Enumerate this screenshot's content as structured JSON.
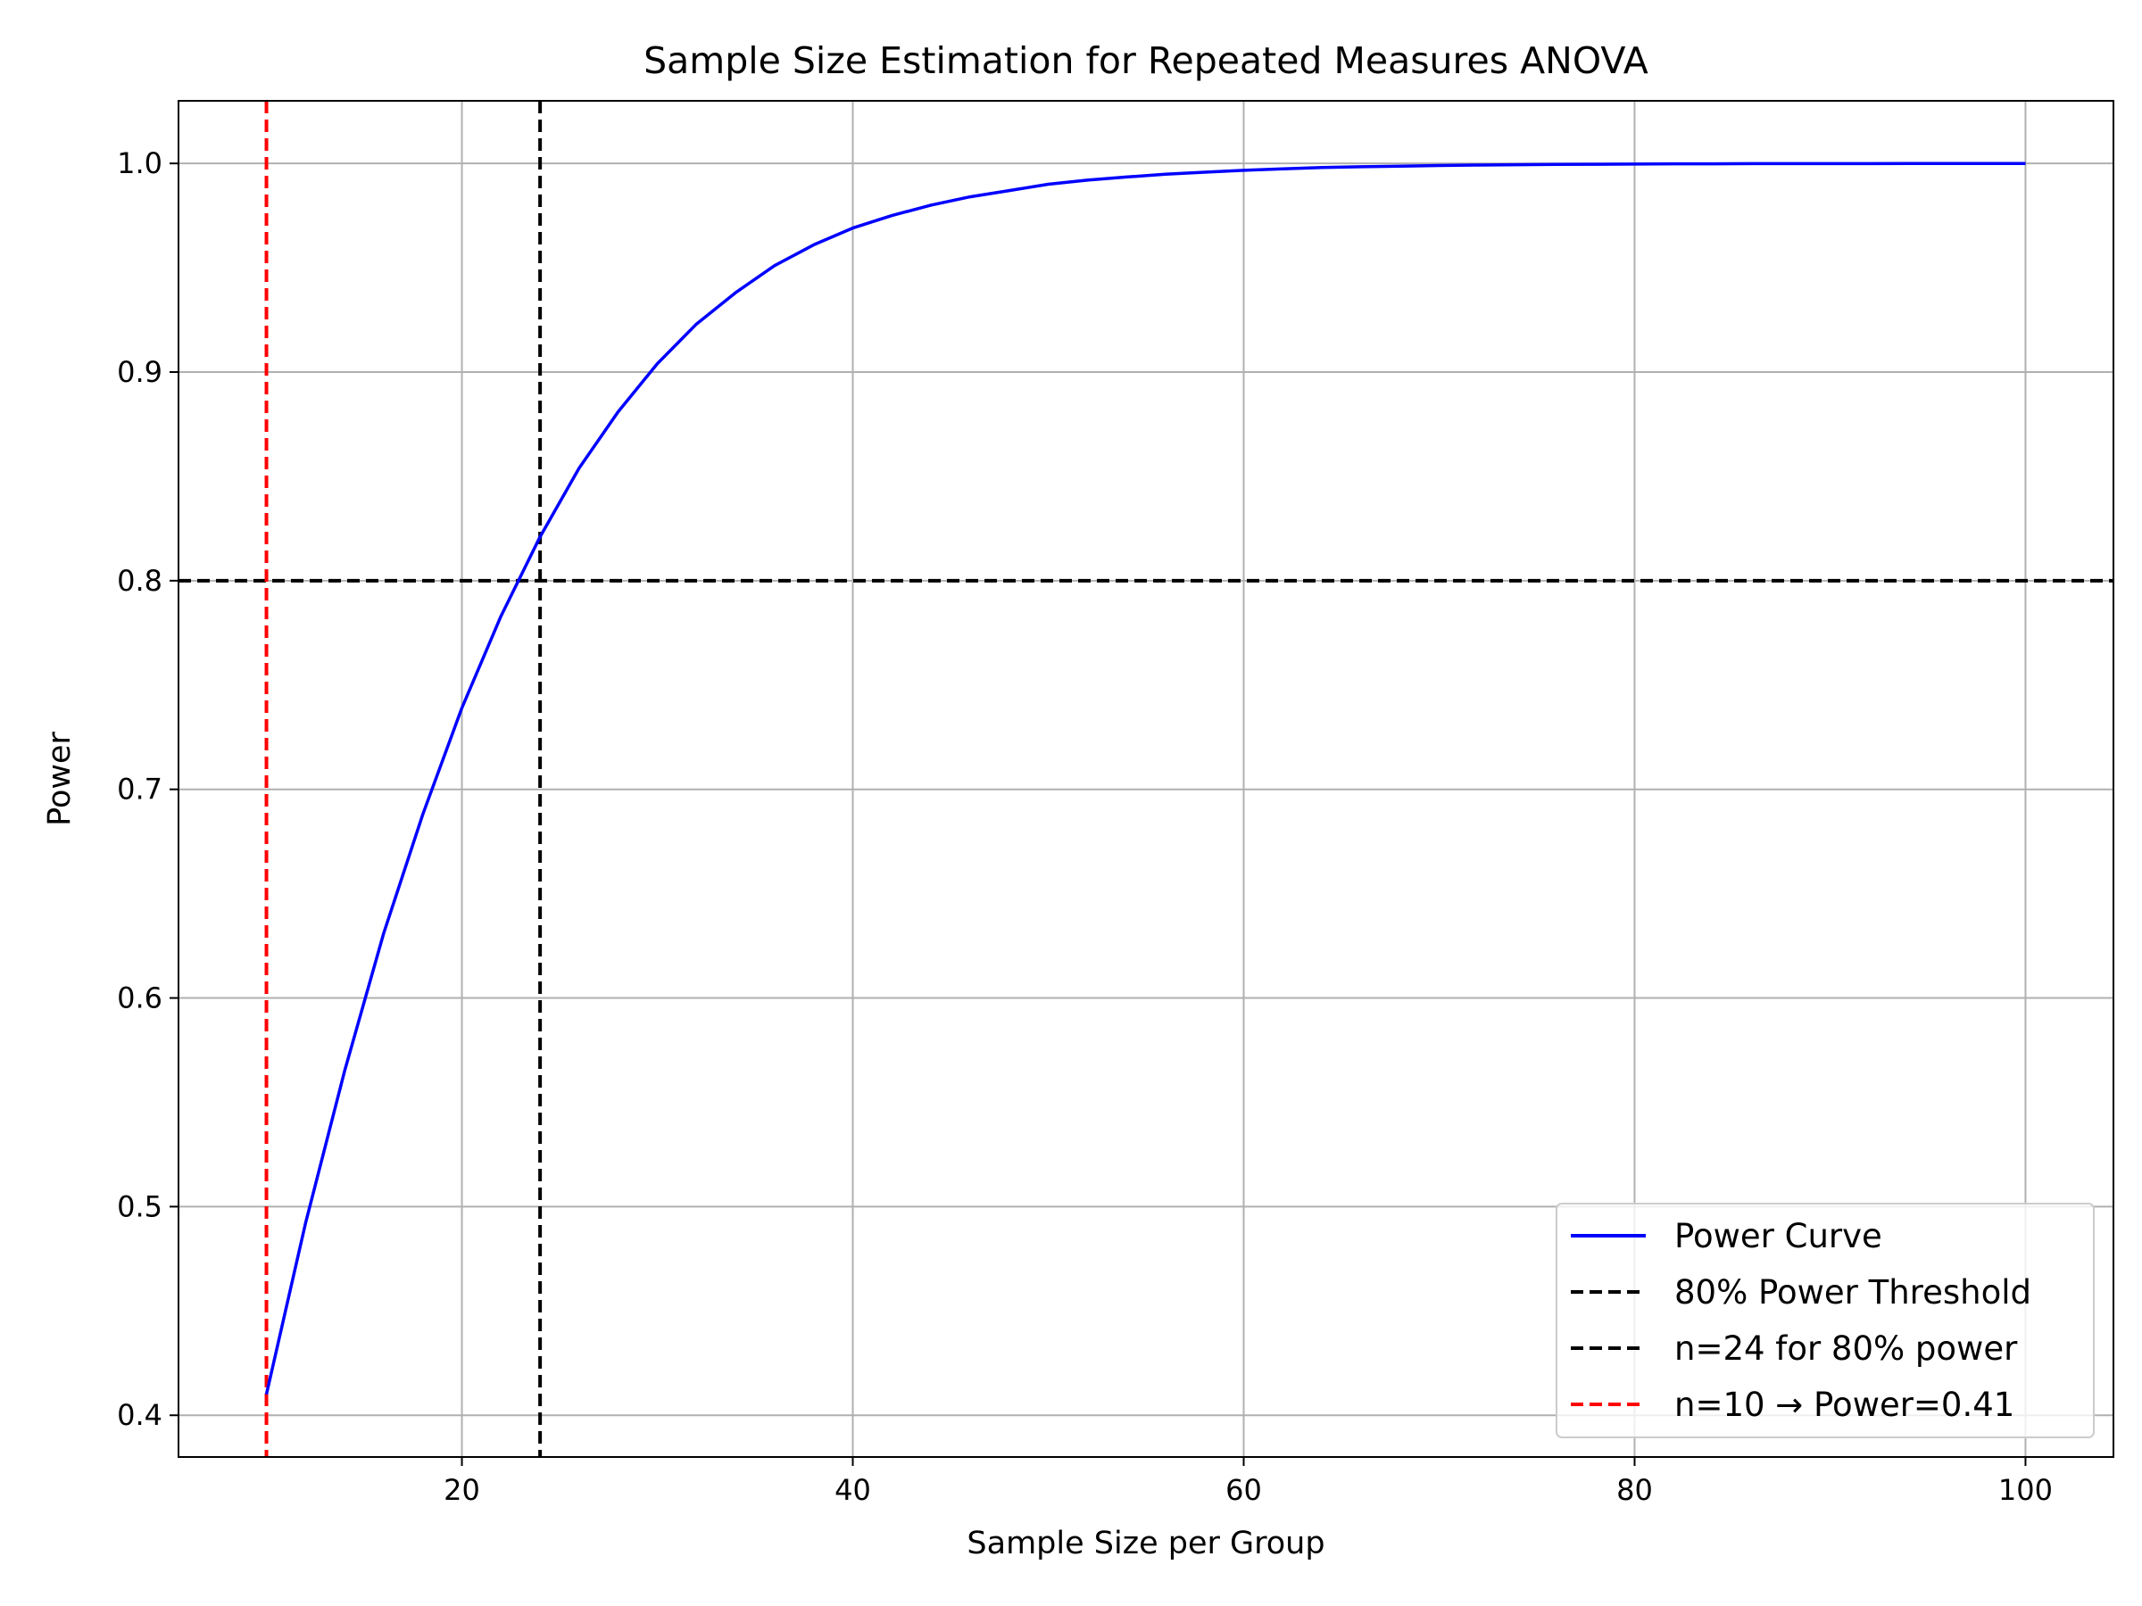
{
  "chart_data": {
    "type": "line",
    "title": "Sample Size Estimation for Repeated Measures ANOVA",
    "xlabel": "Sample Size per Group",
    "ylabel": "Power",
    "xlim": [
      5.5,
      104.5
    ],
    "ylim": [
      0.38,
      1.03
    ],
    "xticks": [
      20,
      40,
      60,
      80,
      100
    ],
    "yticks": [
      0.4,
      0.5,
      0.6,
      0.7,
      0.8,
      0.9,
      1.0
    ],
    "grid": true,
    "legend_position": "bottom-right",
    "series": [
      {
        "name": "Power Curve",
        "color": "#0000ff",
        "style": "solid",
        "x": [
          10,
          12,
          14,
          16,
          18,
          20,
          22,
          24,
          26,
          28,
          30,
          32,
          34,
          36,
          38,
          40,
          42,
          44,
          46,
          48,
          50,
          52,
          54,
          56,
          58,
          60,
          62,
          64,
          66,
          68,
          70,
          72,
          74,
          76,
          78,
          80,
          82,
          84,
          86,
          88,
          90,
          92,
          94,
          96,
          98,
          100
        ],
        "y": [
          0.41,
          0.492,
          0.565,
          0.631,
          0.688,
          0.739,
          0.783,
          0.821,
          0.854,
          0.881,
          0.904,
          0.923,
          0.938,
          0.951,
          0.961,
          0.969,
          0.975,
          0.98,
          0.984,
          0.987,
          0.99,
          0.992,
          0.9935,
          0.9948,
          0.9958,
          0.9967,
          0.9974,
          0.998,
          0.9984,
          0.9987,
          0.999,
          0.9992,
          0.9994,
          0.9995,
          0.9996,
          0.9997,
          0.9998,
          0.9998,
          0.9999,
          0.9999,
          0.9999,
          0.9999,
          1.0,
          1.0,
          1.0,
          1.0
        ]
      },
      {
        "name": "80% Power Threshold",
        "color": "#000000",
        "style": "dashed",
        "orientation": "horizontal",
        "value": 0.8
      },
      {
        "name": "n=24 for 80% power",
        "color": "#000000",
        "style": "dashed",
        "orientation": "vertical",
        "value": 24
      },
      {
        "name": "n=10 → Power=0.41",
        "color": "#ff0000",
        "style": "dashed",
        "orientation": "vertical",
        "value": 10
      }
    ]
  }
}
